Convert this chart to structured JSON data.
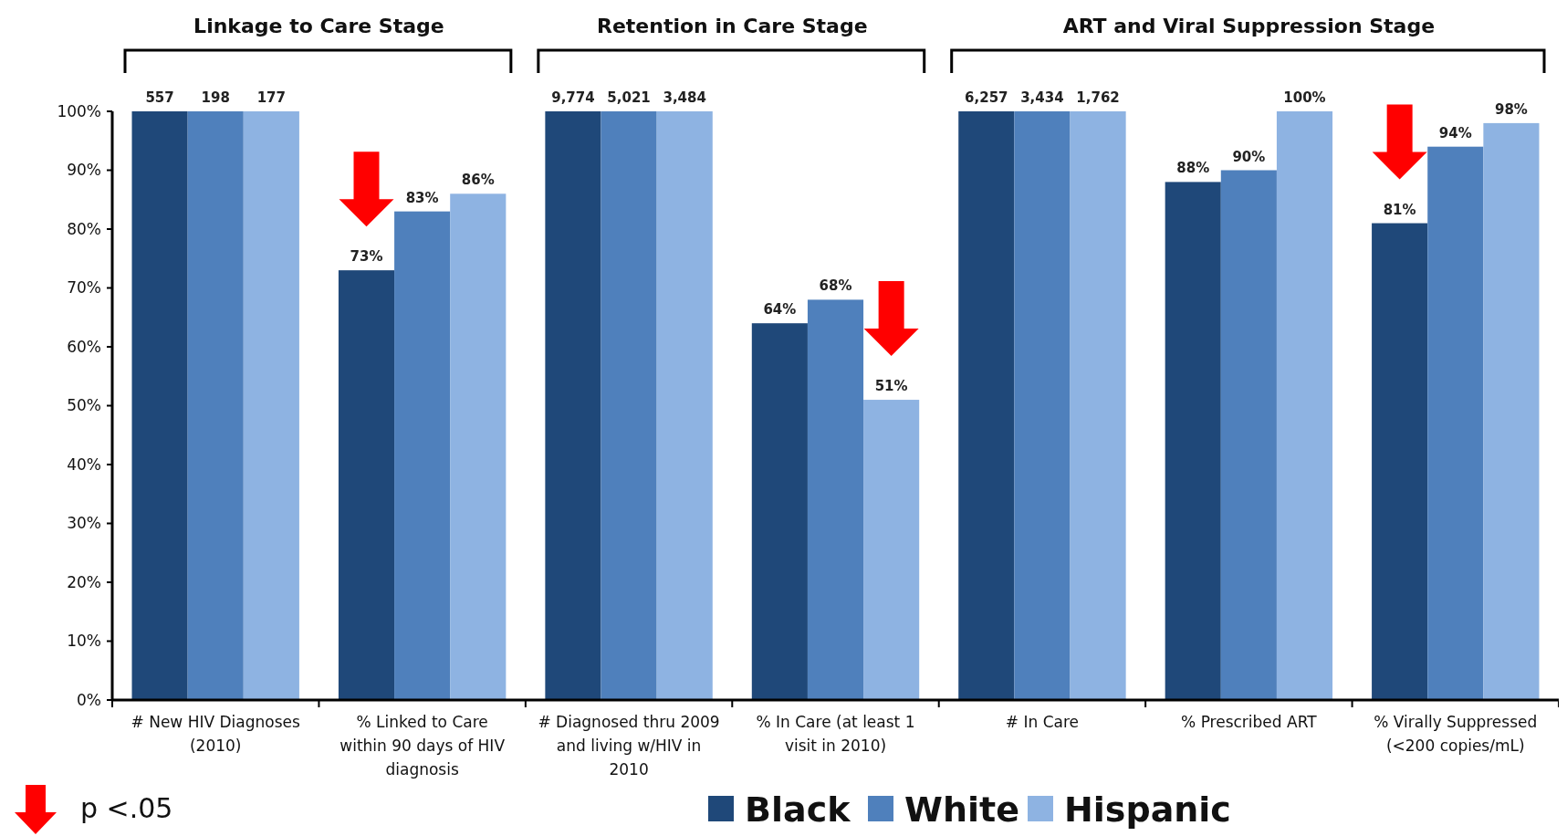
{
  "chart_data": {
    "type": "bar",
    "categories": [
      "# New HIV Diagnoses (2010)",
      "% Linked to Care within 90 days of HIV diagnosis",
      "# Diagnosed thru 2009 and living w/HIV in 2010",
      "% In Care (at least 1 visit in 2010)",
      "# In Care",
      "% Prescribed ART",
      "% Virally Suppressed (<200 copies/mL)"
    ],
    "series": [
      {
        "name": "Black",
        "color": "#1f4879",
        "values": [
          100,
          73,
          100,
          64,
          100,
          88,
          81
        ],
        "value_labels": [
          null,
          "73%",
          null,
          "64%",
          null,
          "88%",
          "81%"
        ]
      },
      {
        "name": "White",
        "color": "#4f80bc",
        "values": [
          100,
          83,
          100,
          68,
          100,
          90,
          94
        ],
        "value_labels": [
          null,
          "83%",
          null,
          "68%",
          null,
          "90%",
          "94%"
        ]
      },
      {
        "name": "Hispanic",
        "color": "#8eb3e2",
        "values": [
          100,
          86,
          100,
          51,
          100,
          100,
          98
        ],
        "value_labels": [
          null,
          "86%",
          null,
          "51%",
          null,
          "100%",
          "98%"
        ]
      }
    ],
    "ylim": [
      0,
      100
    ],
    "yticks": [
      {
        "value": 0,
        "label": "0%"
      },
      {
        "value": 10,
        "label": "10%"
      },
      {
        "value": 20,
        "label": "20%"
      },
      {
        "value": 30,
        "label": "30%"
      },
      {
        "value": 40,
        "label": "40%"
      },
      {
        "value": 50,
        "label": "50%"
      },
      {
        "value": 60,
        "label": "60%"
      },
      {
        "value": 70,
        "label": "70%"
      },
      {
        "value": 80,
        "label": "80%"
      },
      {
        "value": 90,
        "label": "90%"
      },
      {
        "value": 100,
        "label": "100%"
      }
    ],
    "legend": "bottom",
    "annotations": [
      "Linkage to Care Stage",
      "Retention in Care Stage",
      "ART and Viral Suppression Stage",
      "p <.05",
      "557",
      "198",
      "177",
      "9,774",
      "5,021",
      "3,484",
      "6,257",
      "3,434",
      "1,762"
    ]
  }
}
